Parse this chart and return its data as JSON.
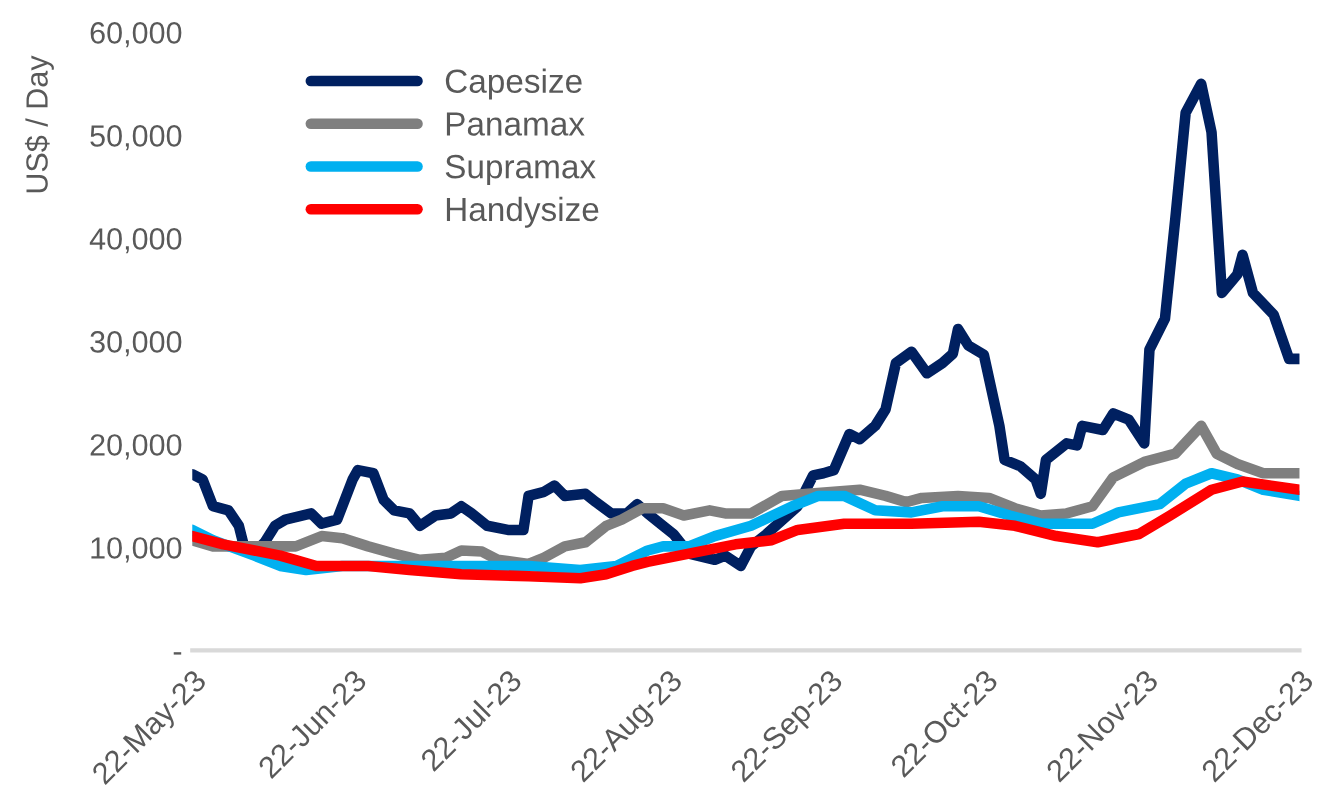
{
  "chart_data": {
    "type": "line",
    "ylabel": "US$ / Day",
    "xlim": [
      "2023-05-22",
      "2023-12-22"
    ],
    "xticks": [
      {
        "value": "2023-05-22",
        "label": "22-May-23"
      },
      {
        "value": "2023-06-22",
        "label": "22-Jun-23"
      },
      {
        "value": "2023-07-22",
        "label": "22-Jul-23"
      },
      {
        "value": "2023-08-22",
        "label": "22-Aug-23"
      },
      {
        "value": "2023-09-22",
        "label": "22-Sep-23"
      },
      {
        "value": "2023-10-22",
        "label": "22-Oct-23"
      },
      {
        "value": "2023-11-22",
        "label": "22-Nov-23"
      },
      {
        "value": "2023-12-22",
        "label": "22-Dec-23"
      }
    ],
    "ylim": [
      0,
      60000
    ],
    "yticks": [
      {
        "value": 0,
        "label": "-"
      },
      {
        "value": 10000,
        "label": "10,000"
      },
      {
        "value": 20000,
        "label": "20,000"
      },
      {
        "value": 30000,
        "label": "30,000"
      },
      {
        "value": 40000,
        "label": "40,000"
      },
      {
        "value": 50000,
        "label": "50,000"
      },
      {
        "value": 60000,
        "label": "60,000"
      }
    ],
    "grid": false,
    "legend": "top left",
    "marker": "none",
    "line_style": "solid",
    "series": [
      {
        "name": "Capesize",
        "color": "#002060",
        "x": [
          "2023-05-22",
          "2023-05-24",
          "2023-05-26",
          "2023-05-29",
          "2023-05-31",
          "2023-06-01",
          "2023-06-03",
          "2023-06-05",
          "2023-06-07",
          "2023-06-09",
          "2023-06-14",
          "2023-06-16",
          "2023-06-19",
          "2023-06-22",
          "2023-06-23",
          "2023-06-26",
          "2023-06-28",
          "2023-06-30",
          "2023-07-03",
          "2023-07-05",
          "2023-07-08",
          "2023-07-11",
          "2023-07-13",
          "2023-07-15",
          "2023-07-18",
          "2023-07-22",
          "2023-07-25",
          "2023-07-26",
          "2023-07-29",
          "2023-07-31",
          "2023-08-02",
          "2023-08-06",
          "2023-08-08",
          "2023-08-11",
          "2023-08-14",
          "2023-08-16",
          "2023-08-18",
          "2023-08-21",
          "2023-08-23",
          "2023-08-26",
          "2023-08-31",
          "2023-09-02",
          "2023-09-05",
          "2023-09-07",
          "2023-09-10",
          "2023-09-16",
          "2023-09-19",
          "2023-09-21",
          "2023-09-23",
          "2023-09-26",
          "2023-09-28",
          "2023-10-01",
          "2023-10-03",
          "2023-10-05",
          "2023-10-08",
          "2023-10-11",
          "2023-10-14",
          "2023-10-16",
          "2023-10-17",
          "2023-10-19",
          "2023-10-22",
          "2023-10-25",
          "2023-10-26",
          "2023-10-29",
          "2023-11-01",
          "2023-11-02",
          "2023-11-03",
          "2023-11-07",
          "2023-11-09",
          "2023-11-10",
          "2023-11-14",
          "2023-11-16",
          "2023-11-19",
          "2023-11-22",
          "2023-11-23",
          "2023-11-26",
          "2023-11-28",
          "2023-11-30",
          "2023-12-03",
          "2023-12-05",
          "2023-12-07",
          "2023-12-10",
          "2023-12-11",
          "2023-12-13",
          "2023-12-17",
          "2023-12-20",
          "2023-12-22"
        ],
        "values": [
          17100,
          16600,
          14000,
          13600,
          12100,
          10100,
          9500,
          10500,
          12100,
          12700,
          13300,
          12300,
          12700,
          16600,
          17500,
          17200,
          14600,
          13600,
          13300,
          12100,
          13100,
          13300,
          14000,
          13300,
          12100,
          11700,
          11700,
          15000,
          15400,
          16000,
          15000,
          15200,
          14400,
          13300,
          13300,
          14200,
          13300,
          12100,
          11300,
          9400,
          8800,
          9200,
          8200,
          10100,
          11300,
          14000,
          17000,
          17200,
          17500,
          21000,
          20500,
          21800,
          23400,
          27900,
          29000,
          26900,
          27900,
          28800,
          31200,
          29600,
          28700,
          21800,
          18500,
          17900,
          16600,
          15200,
          18500,
          20100,
          19900,
          21800,
          21400,
          23000,
          22400,
          20100,
          29200,
          32200,
          41900,
          52200,
          55000,
          50300,
          34700,
          36500,
          38400,
          34700,
          32600,
          28300,
          28300
        ]
      },
      {
        "name": "Panamax",
        "color": "#7f7f7f",
        "x": [
          "2023-05-22",
          "2023-05-26",
          "2023-06-05",
          "2023-06-11",
          "2023-06-16",
          "2023-06-20",
          "2023-06-25",
          "2023-06-30",
          "2023-07-05",
          "2023-07-10",
          "2023-07-13",
          "2023-07-17",
          "2023-07-20",
          "2023-07-26",
          "2023-07-29",
          "2023-08-02",
          "2023-08-06",
          "2023-08-10",
          "2023-08-13",
          "2023-08-17",
          "2023-08-21",
          "2023-08-25",
          "2023-08-30",
          "2023-09-02",
          "2023-09-07",
          "2023-09-13",
          "2023-09-18",
          "2023-09-28",
          "2023-10-03",
          "2023-10-07",
          "2023-10-10",
          "2023-10-17",
          "2023-10-23",
          "2023-10-28",
          "2023-11-02",
          "2023-11-07",
          "2023-11-12",
          "2023-11-16",
          "2023-11-22",
          "2023-11-28",
          "2023-12-03",
          "2023-12-06",
          "2023-12-10",
          "2023-12-15",
          "2023-12-22"
        ],
        "values": [
          10700,
          10100,
          10100,
          10100,
          11100,
          10900,
          10100,
          9400,
          8800,
          9000,
          9700,
          9600,
          8800,
          8400,
          9000,
          10100,
          10500,
          12100,
          12700,
          13800,
          13800,
          13100,
          13600,
          13300,
          13300,
          15000,
          15200,
          15600,
          15000,
          14400,
          14800,
          15000,
          14800,
          13800,
          13100,
          13300,
          14000,
          16800,
          18300,
          19100,
          21800,
          19100,
          18100,
          17200,
          17200
        ]
      },
      {
        "name": "Supramax",
        "color": "#00b0f0",
        "x": [
          "2023-05-22",
          "2023-05-26",
          "2023-06-03",
          "2023-06-08",
          "2023-06-13",
          "2023-06-20",
          "2023-06-30",
          "2023-07-13",
          "2023-07-26",
          "2023-08-05",
          "2023-08-12",
          "2023-08-18",
          "2023-08-21",
          "2023-08-26",
          "2023-08-31",
          "2023-09-07",
          "2023-09-15",
          "2023-09-20",
          "2023-09-25",
          "2023-10-01",
          "2023-10-08",
          "2023-10-14",
          "2023-10-21",
          "2023-10-27",
          "2023-11-02",
          "2023-11-12",
          "2023-11-17",
          "2023-11-25",
          "2023-11-30",
          "2023-12-05",
          "2023-12-10",
          "2023-12-15",
          "2023-12-22"
        ],
        "values": [
          11700,
          10700,
          9200,
          8200,
          7800,
          8200,
          8200,
          8200,
          8200,
          7800,
          8200,
          9700,
          10100,
          10100,
          11100,
          12100,
          14000,
          15000,
          15000,
          13600,
          13400,
          14000,
          14000,
          13100,
          12300,
          12300,
          13400,
          14200,
          16200,
          17200,
          16600,
          15600,
          15000
        ]
      },
      {
        "name": "Handysize",
        "color": "#ff0000",
        "x": [
          "2023-05-22",
          "2023-05-28",
          "2023-06-03",
          "2023-06-08",
          "2023-06-15",
          "2023-06-25",
          "2023-07-03",
          "2023-07-13",
          "2023-07-26",
          "2023-08-05",
          "2023-08-10",
          "2023-08-15",
          "2023-08-18",
          "2023-08-26",
          "2023-09-04",
          "2023-09-11",
          "2023-09-16",
          "2023-09-25",
          "2023-10-08",
          "2023-10-21",
          "2023-10-28",
          "2023-11-05",
          "2023-11-13",
          "2023-11-21",
          "2023-11-27",
          "2023-12-05",
          "2023-12-11",
          "2023-12-22"
        ],
        "values": [
          11100,
          10300,
          9700,
          9200,
          8200,
          8200,
          7800,
          7400,
          7200,
          7000,
          7400,
          8200,
          8600,
          9400,
          10300,
          10700,
          11700,
          12300,
          12300,
          12500,
          12100,
          11100,
          10500,
          11300,
          13100,
          15600,
          16400,
          15600
        ]
      }
    ]
  }
}
